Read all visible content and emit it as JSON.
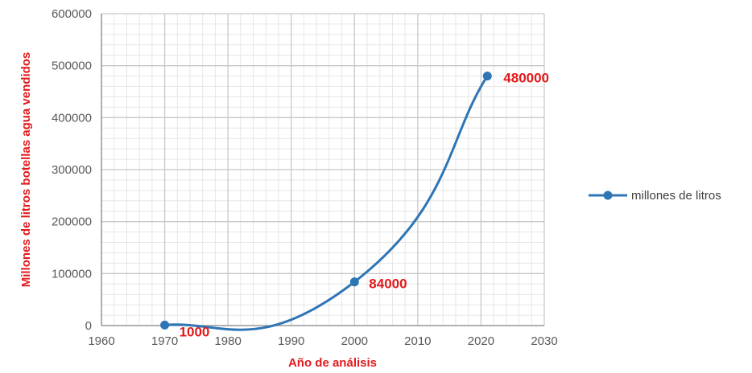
{
  "chart_data": {
    "type": "line",
    "xlabel": "Año de análisis",
    "ylabel": "Millones de litros botellas agua vendidos",
    "xlim": [
      1960,
      2030
    ],
    "ylim": [
      0,
      600000
    ],
    "x_ticks": [
      "1960",
      "1970",
      "1980",
      "1990",
      "2000",
      "2010",
      "2020",
      "2030"
    ],
    "y_ticks": [
      "0",
      "100000",
      "200000",
      "300000",
      "400000",
      "500000",
      "600000"
    ],
    "series": [
      {
        "name": "millones de litros",
        "x": [
          1970,
          2000,
          2021
        ],
        "values": [
          1000,
          84000,
          480000
        ],
        "data_labels": [
          "1000",
          "84000",
          "480000"
        ],
        "smooth": true
      }
    ],
    "grid": true,
    "legend_position": "right",
    "colors": {
      "series": "#2E75B6",
      "labels": "#E3191C",
      "axis_title": "#E3191C",
      "major_grid": "#C8C8C8",
      "minor_grid": "#E6E6E6"
    }
  }
}
